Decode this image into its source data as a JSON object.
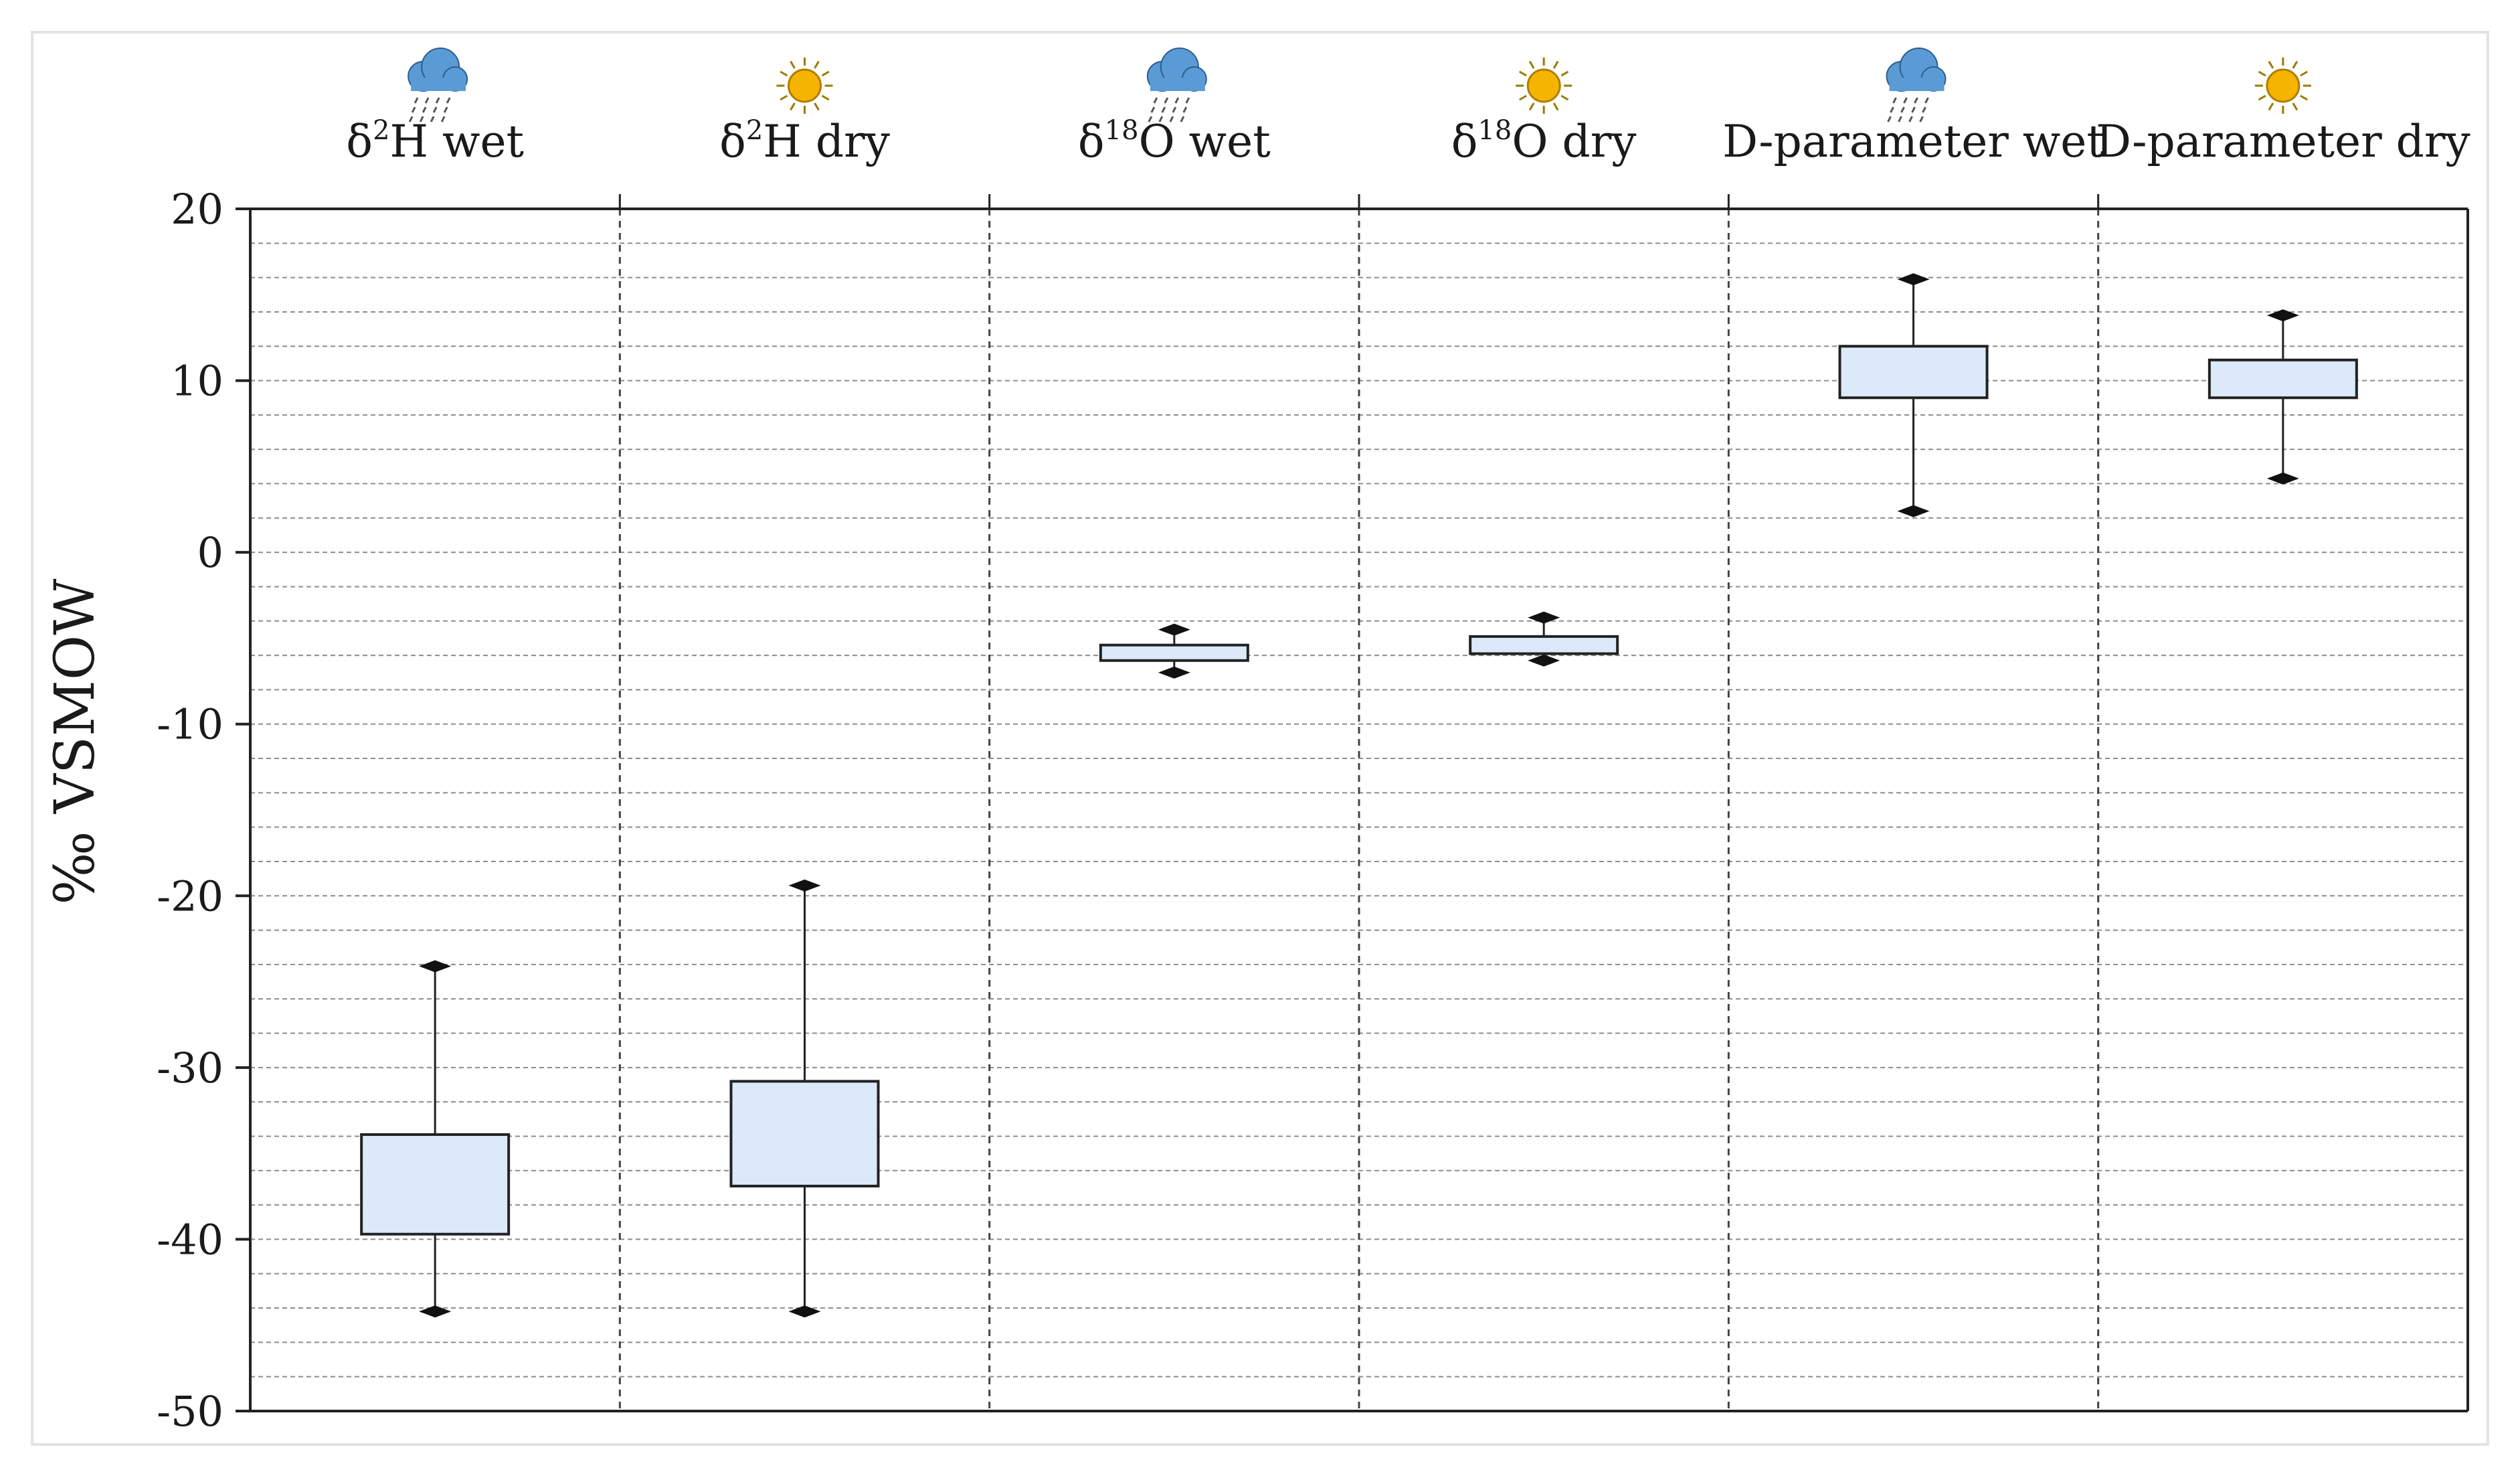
{
  "chart_data": {
    "type": "boxplot",
    "ylabel": "‰ VSMOW",
    "ylim": [
      -50,
      20
    ],
    "yticks": [
      20,
      10,
      0,
      -10,
      -20,
      -30,
      -40,
      -50
    ],
    "grid": {
      "major_dashed_vertical": true,
      "minor_dashed_horizontal": true
    },
    "box_fill": "#dbe9f8",
    "box_stroke": "#222222",
    "categories": [
      {
        "pre": "δ",
        "sup": "2",
        "post": "H wet",
        "icon": "rain-cloud-icon"
      },
      {
        "pre": "δ",
        "sup": "2",
        "post": "H dry",
        "icon": "sun-icon"
      },
      {
        "pre": "δ",
        "sup": "18",
        "post": "O wet",
        "icon": "rain-cloud-icon"
      },
      {
        "pre": "δ",
        "sup": "18",
        "post": "O dry",
        "icon": "sun-icon"
      },
      {
        "pre": "D-parameter wet",
        "sup": "",
        "post": "",
        "icon": "rain-cloud-icon"
      },
      {
        "pre": "D-parameter dry",
        "sup": "",
        "post": "",
        "icon": "sun-icon"
      }
    ],
    "boxes": [
      {
        "min": -44.2,
        "q1": -39.7,
        "q3": -33.9,
        "max": -24.1
      },
      {
        "min": -44.2,
        "q1": -36.9,
        "q3": -30.8,
        "max": -19.4
      },
      {
        "min": -7.0,
        "q1": -6.3,
        "q3": -5.4,
        "max": -4.5
      },
      {
        "min": -6.3,
        "q1": -5.9,
        "q3": -4.9,
        "max": -3.8
      },
      {
        "min": 2.4,
        "q1": 9.0,
        "q3": 12.0,
        "max": 15.9
      },
      {
        "min": 4.3,
        "q1": 9.0,
        "q3": 11.2,
        "max": 13.8
      }
    ],
    "colors": {
      "rain_cloud": "#5b9bd5",
      "sun": "#f4b400",
      "grid": "#8c8c8c",
      "axis": "#222222"
    }
  }
}
